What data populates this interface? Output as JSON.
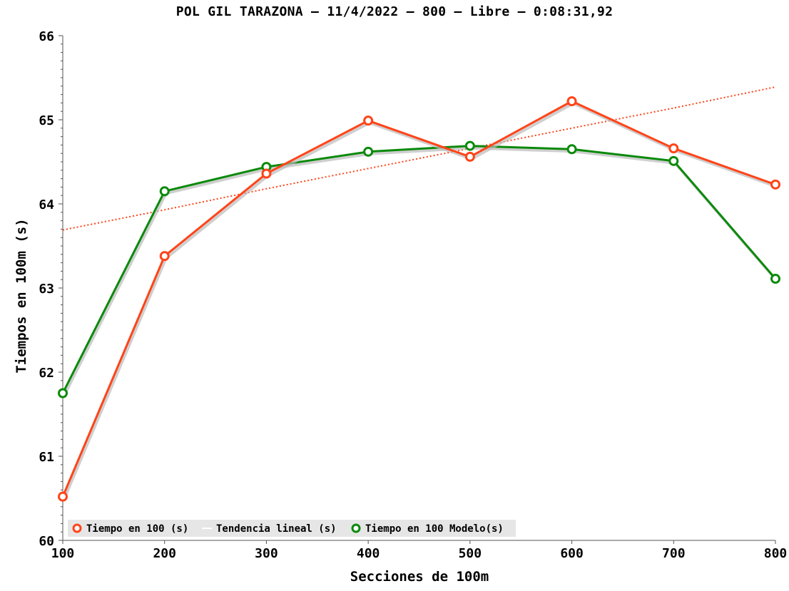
{
  "chart_data": {
    "type": "line",
    "title": "POL GIL TARAZONA – 11/4/2022 – 800 – Libre – 0:08:31,92",
    "xlabel": "Secciones de 100m",
    "ylabel": "Tiempos en 100m (s)",
    "x": [
      100,
      200,
      300,
      400,
      500,
      600,
      700,
      800
    ],
    "xlim": [
      100,
      800
    ],
    "ylim": [
      60,
      66
    ],
    "xticks": [
      100,
      200,
      300,
      400,
      500,
      600,
      700,
      800
    ],
    "yticks": [
      60,
      61,
      62,
      63,
      64,
      65,
      66
    ],
    "grid": false,
    "legend_position": "bottom-left",
    "series": [
      {
        "name": "Tiempo en 100 (s)",
        "color": "#ff4418",
        "style": "solid-markers",
        "values": [
          60.52,
          63.38,
          64.36,
          64.99,
          64.56,
          65.22,
          64.66,
          64.23
        ]
      },
      {
        "name": "Tendencia lineal (s)",
        "color": "#ff4418",
        "style": "dotted",
        "values": [
          63.69,
          63.93,
          64.18,
          64.42,
          64.66,
          64.9,
          65.14,
          65.39
        ]
      },
      {
        "name": "Tiempo en 100 Modelo(s)",
        "color": "#0a8a0a",
        "style": "solid-markers",
        "values": [
          61.75,
          64.15,
          64.44,
          64.62,
          64.69,
          64.65,
          64.51,
          63.11
        ]
      }
    ]
  }
}
